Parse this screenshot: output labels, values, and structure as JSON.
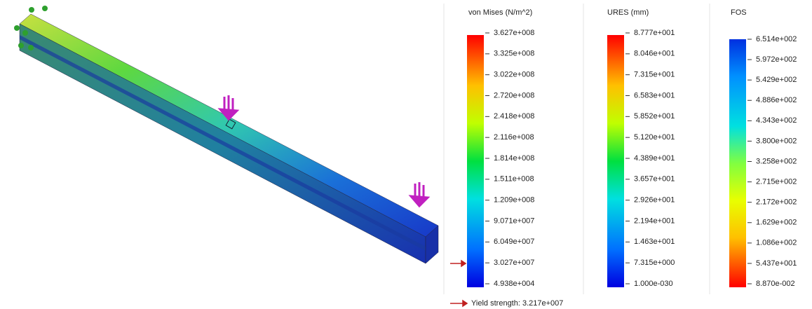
{
  "legends": [
    {
      "title": "von Mises (N/m^2)",
      "labels": [
        "3.627e+008",
        "3.325e+008",
        "3.022e+008",
        "2.720e+008",
        "2.418e+008",
        "2.116e+008",
        "1.814e+008",
        "1.511e+008",
        "1.209e+008",
        "9.071e+007",
        "6.049e+007",
        "3.027e+007",
        "4.938e+004"
      ]
    },
    {
      "title": "URES (mm)",
      "labels": [
        "8.777e+001",
        "8.046e+001",
        "7.315e+001",
        "6.583e+001",
        "5.852e+001",
        "5.120e+001",
        "4.389e+001",
        "3.657e+001",
        "2.926e+001",
        "2.194e+001",
        "1.463e+001",
        "7.315e+000",
        "1.000e-030"
      ]
    },
    {
      "title": "FOS",
      "labels": [
        "6.514e+002",
        "5.972e+002",
        "5.429e+002",
        "4.886e+002",
        "4.343e+002",
        "3.800e+002",
        "3.258e+002",
        "2.715e+002",
        "2.172e+002",
        "1.629e+002",
        "1.086e+002",
        "5.437e+001",
        "8.870e-002"
      ]
    }
  ],
  "yield_strength": "Yield strength: 3.217e+007"
}
